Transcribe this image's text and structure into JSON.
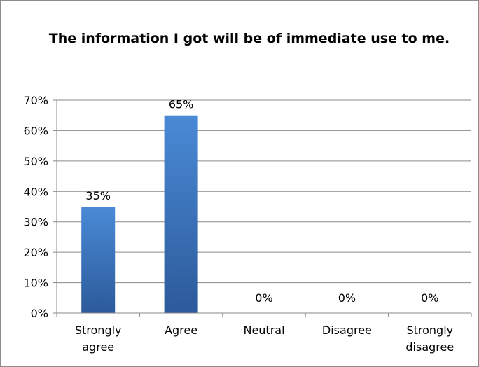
{
  "chart_data": {
    "type": "bar",
    "title": "The information I got will be of immediate use to me.",
    "categories": [
      "Strongly agree",
      "Agree",
      "Neutral",
      "Disagree",
      "Strongly disagree"
    ],
    "category_lines": [
      [
        "Strongly",
        "agree"
      ],
      [
        "Agree"
      ],
      [
        "Neutral"
      ],
      [
        "Disagree"
      ],
      [
        "Strongly",
        "disagree"
      ]
    ],
    "values": [
      35,
      65,
      0,
      0,
      0
    ],
    "data_labels": [
      "35%",
      "65%",
      "0%",
      "0%",
      "0%"
    ],
    "y_ticks": [
      0,
      10,
      20,
      30,
      40,
      50,
      60,
      70
    ],
    "y_tick_labels": [
      "0%",
      "10%",
      "20%",
      "30%",
      "40%",
      "50%",
      "60%",
      "70%"
    ],
    "ylim": [
      0,
      70
    ],
    "xlabel": "",
    "ylabel": "",
    "grid": true,
    "legend": "none",
    "colors": {
      "bar_top": "#4a8ad6",
      "bar_bottom": "#2c5a9a",
      "gridline": "#8a8a8a",
      "axis": "#8a8a8a",
      "text": "#000000"
    }
  }
}
